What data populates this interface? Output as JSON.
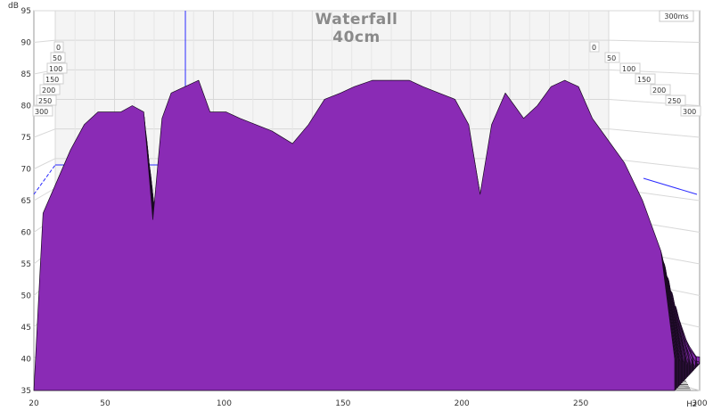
{
  "chart_data": {
    "type": "waterfall",
    "title": "Waterfall",
    "subtitle": "40cm",
    "ylabel": "dB",
    "xunit": "Hz",
    "x_ticks": [
      "20",
      "50",
      "100",
      "150",
      "200",
      "250",
      "300"
    ],
    "x_tick_values": [
      20,
      50,
      100,
      150,
      200,
      250,
      300
    ],
    "y_ticks": [
      35,
      40,
      45,
      50,
      55,
      60,
      65,
      70,
      75,
      80,
      85,
      90,
      95
    ],
    "xlim": [
      20,
      300
    ],
    "ylim": [
      35,
      95
    ],
    "time_axis_label": "300ms",
    "time_labels": [
      "0",
      "50",
      "100",
      "150",
      "200",
      "250",
      "300"
    ],
    "colors": {
      "fill": "#8a2bb5",
      "line": "#1a0a22",
      "grid": "#d8d8d8",
      "marker": "#2a2aff"
    },
    "frequencies_hz": [
      20,
      24,
      30,
      36,
      42,
      48,
      53,
      58,
      63,
      68,
      72,
      76,
      80,
      86,
      92,
      97,
      104,
      110,
      117,
      124,
      133,
      140,
      147,
      154,
      160,
      168,
      176,
      184,
      190,
      197,
      204,
      210,
      215,
      220,
      226,
      230,
      234,
      240,
      246,
      252,
      258,
      264,
      270,
      278,
      286,
      294,
      300
    ],
    "front_slice_db": [
      35,
      63,
      68,
      73,
      77,
      79,
      79,
      79,
      80,
      79,
      62,
      78,
      82,
      83,
      84,
      79,
      79,
      78,
      77,
      76,
      74,
      77,
      81,
      82,
      83,
      84,
      84,
      84,
      83,
      82,
      81,
      77,
      66,
      77,
      82,
      80,
      78,
      80,
      83,
      84,
      83,
      78,
      75,
      71,
      65,
      57,
      40
    ],
    "slices": [
      {
        "t_ms": 0,
        "db": [
          35,
          63,
          68,
          73,
          77,
          79,
          79,
          79,
          80,
          79,
          62,
          78,
          82,
          83,
          84,
          79,
          79,
          78,
          77,
          76,
          74,
          77,
          81,
          82,
          83,
          84,
          84,
          84,
          83,
          82,
          81,
          77,
          66,
          77,
          82,
          80,
          78,
          80,
          83,
          84,
          83,
          78,
          75,
          71,
          65,
          57,
          40
        ]
      },
      {
        "t_ms": 300,
        "db": [
          35,
          36,
          38,
          39,
          38,
          39,
          40,
          38,
          38,
          38,
          36,
          37,
          38,
          38,
          39,
          37,
          37,
          38,
          38,
          37,
          38,
          38,
          39,
          39,
          38,
          38,
          38,
          38,
          38,
          38,
          38,
          38,
          37,
          38,
          38,
          38,
          37,
          38,
          38,
          38,
          38,
          38,
          38,
          38,
          37,
          37,
          35
        ]
      }
    ]
  }
}
